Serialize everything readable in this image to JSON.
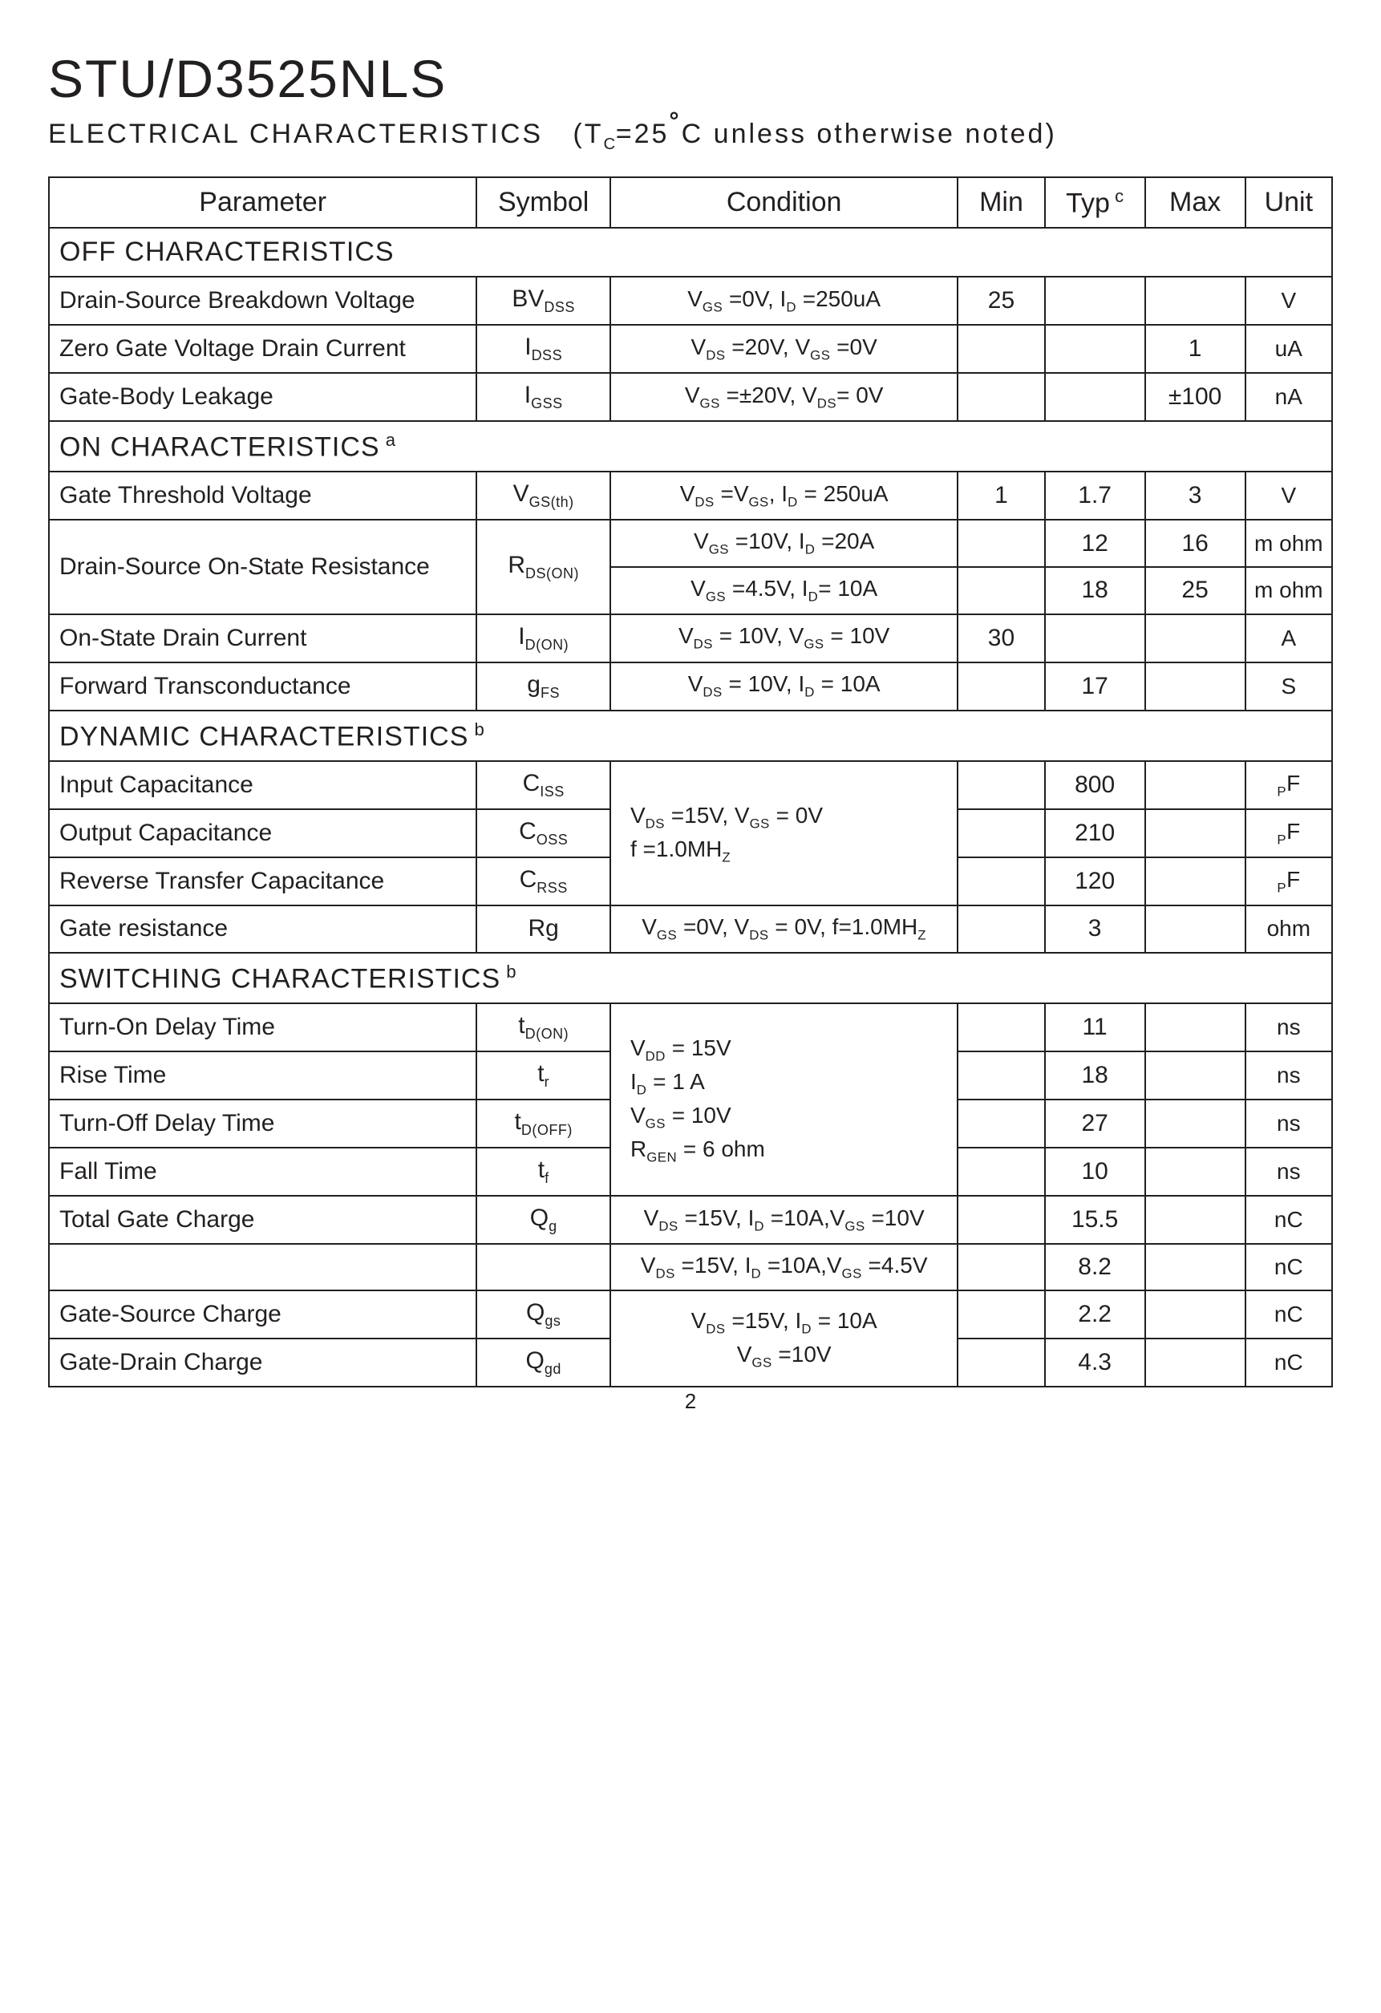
{
  "title": "STU/D3525NLS",
  "subtitle_label": "ELECTRICAL CHARACTERISTICS",
  "subtitle_cond": "(T<sub>C</sub>=25<span class=\"deg\">°</span>C unless otherwise noted)",
  "page_number": "2",
  "colors": {
    "text": "#231f20",
    "border": "#231f20",
    "background": "#ffffff"
  },
  "headers": {
    "parameter": "Parameter",
    "symbol": "Symbol",
    "condition": "Condition",
    "min": "Min",
    "typ": "Typ<sup> c</sup>",
    "max": "Max",
    "unit": "Unit"
  },
  "sections": {
    "off": "OFF CHARACTERISTICS",
    "on": "ON CHARACTERISTICS<sup> a</sup>",
    "dyn": "DYNAMIC CHARACTERISTICS<sup> b</sup>",
    "switch": "SWITCHING CHARACTERISTICS<sup> b</sup>"
  },
  "rows": {
    "bvdss": {
      "param": "Drain-Source Breakdown Voltage",
      "symbol": "BV<sub>DSS</sub>",
      "cond": "V<sub>GS</sub> =0V, I<sub>D</sub> =250uA",
      "min": "25",
      "typ": "",
      "max": "",
      "unit": "V"
    },
    "idss": {
      "param": "Zero Gate Voltage Drain Current",
      "symbol": "I<sub>DSS</sub>",
      "cond": "V<sub>DS</sub> =20V, V<sub>GS</sub> =0V",
      "min": "",
      "typ": "",
      "max": "1",
      "unit": "uA"
    },
    "igss": {
      "param": "Gate-Body Leakage",
      "symbol": "I<sub>GSS</sub>",
      "cond": "V<sub>GS</sub> =±20V, V<sub>DS</sub>= 0V",
      "min": "",
      "typ": "",
      "max": "±100",
      "unit": "nA"
    },
    "vgsth": {
      "param": "Gate Threshold Voltage",
      "symbol": "V<sub>GS(th)</sub>",
      "cond": "V<sub>DS</sub> =V<sub>GS</sub>, I<sub>D</sub> = 250uA",
      "min": "1",
      "typ": "1.7",
      "max": "3",
      "unit": "V"
    },
    "rdson1": {
      "param": "Drain-Source On-State Resistance",
      "symbol": "R<sub>DS(ON)</sub>",
      "cond": "V<sub>GS</sub> =10V, I<sub>D</sub> =20A",
      "min": "",
      "typ": "12",
      "max": "16",
      "unit": "m ohm"
    },
    "rdson2": {
      "cond": "V<sub>GS</sub> =4.5V, I<sub>D</sub>= 10A",
      "min": "",
      "typ": "18",
      "max": "25",
      "unit": "m ohm"
    },
    "idon": {
      "param": "On-State Drain Current",
      "symbol": "I<sub>D(ON)</sub>",
      "cond": "V<sub>DS</sub> = 10V, V<sub>GS</sub> = 10V",
      "min": "30",
      "typ": "",
      "max": "",
      "unit": "A"
    },
    "gfs": {
      "param": "Forward Transconductance",
      "symbol": "g<sub>FS</sub>",
      "cond": "V<sub>DS</sub> =  10V, I<sub>D</sub> = 10A",
      "min": "",
      "typ": "17",
      "max": "",
      "unit": "S"
    },
    "ciss": {
      "param": "Input Capacitance",
      "symbol": "C<sub>ISS</sub>",
      "cond": "V<sub>DS</sub> =15V, V<sub>GS</sub> = 0V<br>f =1.0MH<sub>Z</sub>",
      "min": "",
      "typ": "800",
      "max": "",
      "unit": "<sub>P</sub>F"
    },
    "coss": {
      "param": "Output Capacitance",
      "symbol": "C<sub>OSS</sub>",
      "min": "",
      "typ": "210",
      "max": "",
      "unit": "<sub>P</sub>F"
    },
    "crss": {
      "param": "Reverse Transfer Capacitance",
      "symbol": "C<sub>RSS</sub>",
      "min": "",
      "typ": "120",
      "max": "",
      "unit": "<sub>P</sub>F"
    },
    "rg": {
      "param": "Gate resistance",
      "symbol": "Rg",
      "cond": "V<sub>GS</sub> =0V, V<sub>DS</sub> = 0V, f=1.0MH<sub>Z</sub>",
      "min": "",
      "typ": "3",
      "max": "",
      "unit": "ohm"
    },
    "tdon": {
      "param": "Turn-On Delay Time",
      "symbol": "t<sub>D(ON)</sub>",
      "cond": "V<sub>DD</sub> = 15V<br>I<sub>D</sub> = 1 A<br>V<sub>GS</sub> = 10V<br>R<sub>GEN</sub> = 6 ohm",
      "min": "",
      "typ": "11",
      "max": "",
      "unit": "ns"
    },
    "tr": {
      "param": "Rise Time",
      "symbol": "t<sub>r</sub>",
      "min": "",
      "typ": "18",
      "max": "",
      "unit": "ns"
    },
    "tdoff": {
      "param": "Turn-Off Delay Time",
      "symbol": "t<sub>D(OFF)</sub>",
      "min": "",
      "typ": "27",
      "max": "",
      "unit": "ns"
    },
    "tf": {
      "param": "Fall Time",
      "symbol": "t<sub>f</sub>",
      "min": "",
      "typ": "10",
      "max": "",
      "unit": "ns"
    },
    "qg1": {
      "param": "Total Gate Charge",
      "symbol": "Q<sub>g</sub>",
      "cond": "V<sub>DS</sub> =15V, I<sub>D</sub> =10A,V<sub>GS</sub> =10V",
      "min": "",
      "typ": "15.5",
      "max": "",
      "unit": "nC"
    },
    "qg2": {
      "param": "",
      "symbol": "",
      "cond": "V<sub>DS</sub> =15V, I<sub>D</sub> =10A,V<sub>GS</sub> =4.5V",
      "min": "",
      "typ": "8.2",
      "max": "",
      "unit": "nC"
    },
    "qgs": {
      "param": "Gate-Source Charge",
      "symbol": "Q<sub>gs</sub>",
      "cond": "V<sub>DS</sub> =15V, I<sub>D</sub> = 10A<br>V<sub>GS</sub> =10V",
      "min": "",
      "typ": "2.2",
      "max": "",
      "unit": "nC"
    },
    "qgd": {
      "param": "Gate-Drain Charge",
      "symbol": "Q<sub>gd</sub>",
      "min": "",
      "typ": "4.3",
      "max": "",
      "unit": "nC"
    }
  }
}
